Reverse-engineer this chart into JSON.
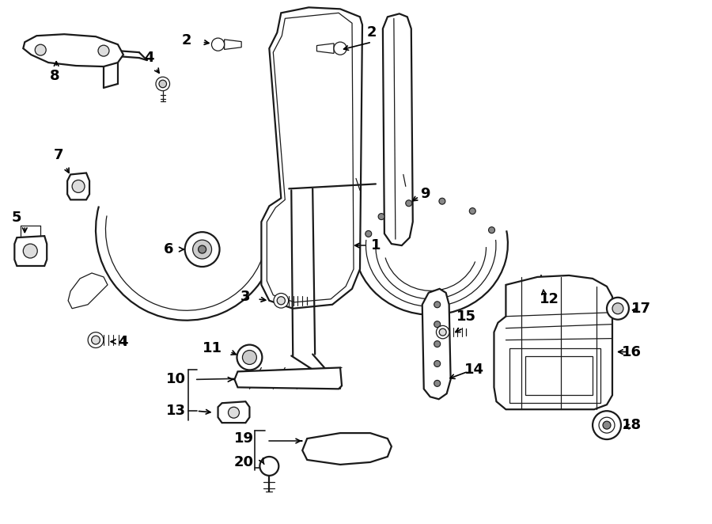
{
  "bg_color": "#ffffff",
  "line_color": "#1a1a1a",
  "fig_width": 9.0,
  "fig_height": 6.62,
  "dpi": 100,
  "lw_main": 1.6,
  "lw_thin": 0.9,
  "label_fontsize": 12,
  "label_bold": true
}
